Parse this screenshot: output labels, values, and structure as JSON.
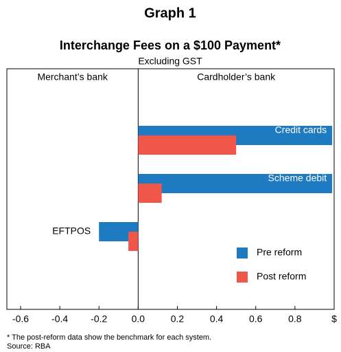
{
  "chart_data": {
    "type": "hbar",
    "title": "Graph 1",
    "subtitle": "Interchange Fees on a $100 Payment*",
    "note": "Excluding GST",
    "panel_labels": [
      "Merchant’s bank",
      "Cardholder’s bank"
    ],
    "categories": [
      "Credit cards",
      "Scheme debit",
      "EFTPOS"
    ],
    "series": [
      {
        "name": "Pre reform",
        "color": "#1f7bc1",
        "values": [
          0.99,
          0.99,
          -0.2
        ]
      },
      {
        "name": "Post reform",
        "color": "#f0574a",
        "values": [
          0.5,
          0.12,
          -0.05
        ]
      }
    ],
    "xlim": [
      -0.67,
      1.0
    ],
    "xticks": [
      -0.6,
      -0.4,
      -0.2,
      {
        "value": 0,
        "label": "0.0"
      },
      0.2,
      0.4,
      0.6,
      0.8,
      {
        "value": 1.0,
        "label": "$"
      }
    ],
    "footnotes": [
      "* The post-reform data show the benchmark for each system.",
      "Source: RBA"
    ]
  }
}
